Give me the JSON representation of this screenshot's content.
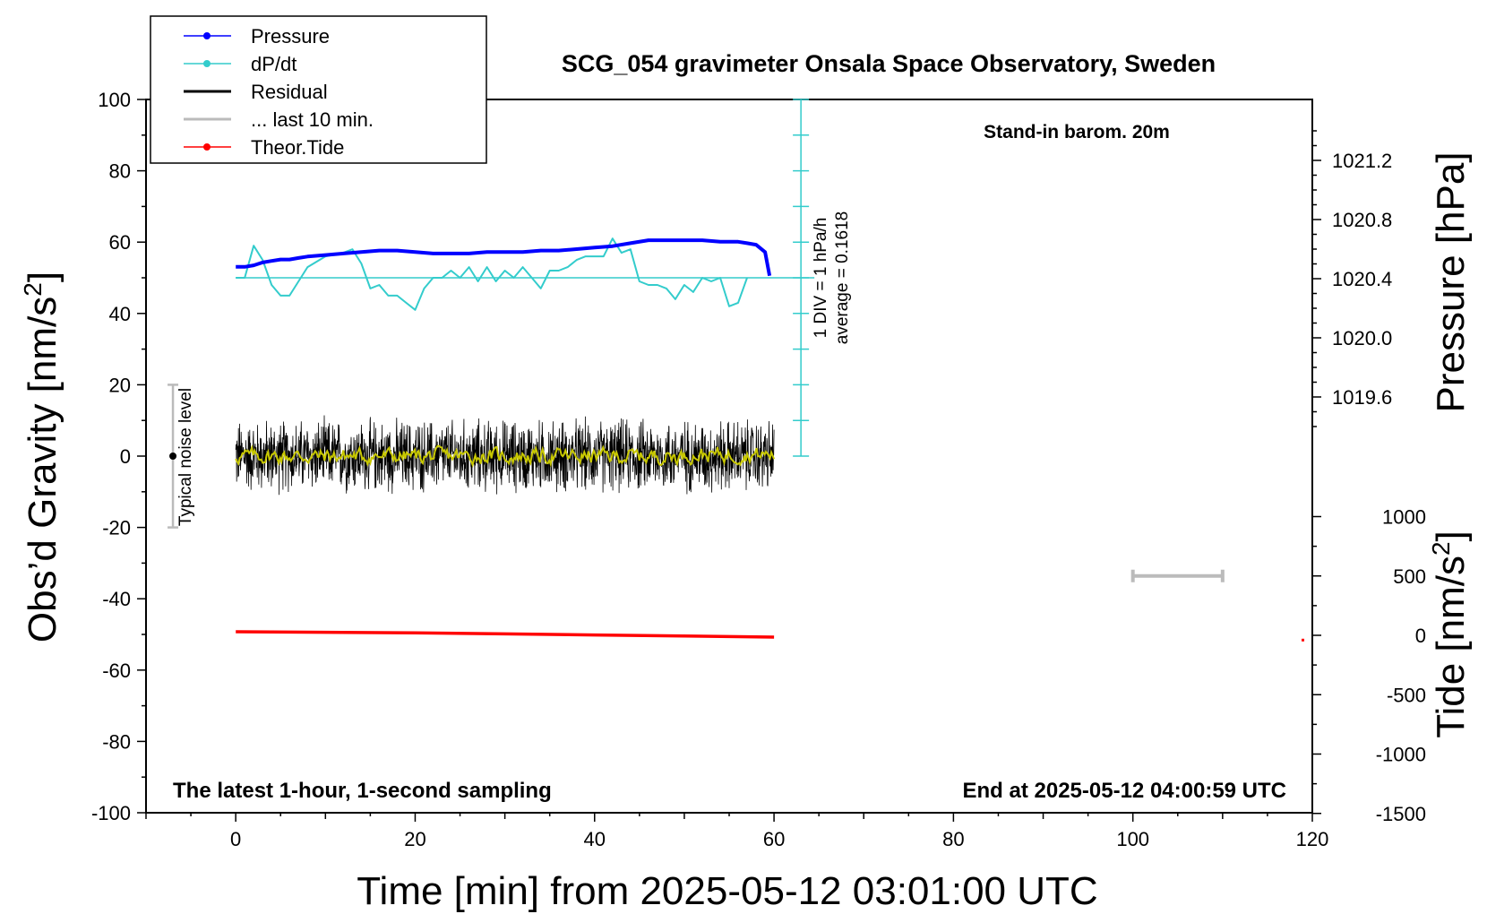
{
  "chart_data": {
    "type": "line",
    "title": "SCG_054 gravimeter Onsala Space Observatory, Sweden",
    "subtitle": "Stand-in barom. 20m",
    "xlabel": "Time [min] from 2025-05-12 03:01:00 UTC",
    "ylabel_left": "Obs’d Gravity [nm/s",
    "ylabel_left_sup": "2",
    "ylabel_left_end": "]",
    "ylabel_right_pressure": "Pressure [hPa]",
    "ylabel_right_tide": "Tide [nm/s",
    "ylabel_right_tide_sup": "2",
    "ylabel_right_tide_end": "]",
    "xlim": [
      -10,
      120
    ],
    "ylim": [
      -100,
      100
    ],
    "pressure_lim": [
      1019.35,
      1021.55
    ],
    "tide_lim": [
      -1500,
      1500
    ],
    "x_ticks": [
      0,
      20,
      40,
      60,
      80,
      100,
      120
    ],
    "y_ticks": [
      100,
      80,
      60,
      40,
      20,
      0,
      -20,
      -40,
      -60,
      -80,
      -100
    ],
    "pressure_ticks": [
      "1021.2",
      "1020.8",
      "1020.4",
      "1020.0",
      "1019.6"
    ],
    "tide_ticks": [
      "1000",
      "500",
      "0",
      "-500",
      "-1000",
      "-1500"
    ],
    "note_left": "The latest 1-hour, 1-second sampling",
    "note_right": "End at 2025-05-12 04:00:59 UTC",
    "dpdt_scale_line1": "1 DIV = 1 hPa/h",
    "dpdt_scale_line2": "average = 0.1618",
    "noise_label": "Typical noise level",
    "noise_range": [
      -20,
      20
    ],
    "legend": [
      {
        "label": "Pressure",
        "color": "#0000ff",
        "style": "line-dot"
      },
      {
        "label": "dP/dt",
        "color": "#33cccc",
        "style": "line-dot"
      },
      {
        "label": "Residual",
        "color": "#000000",
        "style": "line"
      },
      {
        "label": "... last 10 min.",
        "color": "#bbbbbb",
        "style": "line"
      },
      {
        "label": "Theor.Tide",
        "color": "#ff0000",
        "style": "line-dot"
      }
    ],
    "colors": {
      "pressure": "#0000ff",
      "dpdt": "#33cccc",
      "residual": "#000000",
      "residual_smooth": "#c8c800",
      "last10": "#bbbbbb",
      "tide": "#ff0000"
    },
    "series": [
      {
        "name": "Pressure",
        "unit": "hPa",
        "x": [
          0,
          1,
          2,
          3,
          4,
          5,
          6,
          7,
          8,
          10,
          12,
          14,
          16,
          18,
          20,
          22,
          24,
          26,
          28,
          30,
          32,
          34,
          36,
          38,
          40,
          42,
          44,
          46,
          48,
          50,
          52,
          54,
          56,
          57,
          58,
          59,
          59.5
        ],
        "values": [
          1020.48,
          1020.48,
          1020.49,
          1020.51,
          1020.52,
          1020.53,
          1020.53,
          1020.54,
          1020.55,
          1020.56,
          1020.57,
          1020.58,
          1020.59,
          1020.59,
          1020.58,
          1020.57,
          1020.57,
          1020.57,
          1020.58,
          1020.58,
          1020.58,
          1020.59,
          1020.59,
          1020.6,
          1020.61,
          1020.62,
          1020.64,
          1020.66,
          1020.66,
          1020.66,
          1020.66,
          1020.65,
          1020.65,
          1020.64,
          1020.63,
          1020.58,
          1020.42
        ]
      },
      {
        "name": "dP/dt",
        "unit": "hPa/h (1 DIV = 1 hPa/h, baseline = average 0.1618)",
        "x": [
          0,
          1,
          2,
          3,
          4,
          5,
          6,
          8,
          10,
          12,
          13,
          14,
          15,
          16,
          17,
          18,
          19,
          20,
          21,
          22,
          23,
          24,
          25,
          26,
          27,
          28,
          29,
          30,
          31,
          32,
          33,
          34,
          35,
          36,
          37,
          38,
          39,
          40,
          41,
          42,
          43,
          44,
          45,
          46,
          47,
          48,
          49,
          50,
          51,
          52,
          53,
          54,
          55,
          56,
          57
        ],
        "values": [
          0.0,
          0.0,
          0.9,
          0.5,
          -0.2,
          -0.5,
          -0.5,
          0.3,
          0.6,
          0.7,
          0.8,
          0.4,
          -0.3,
          -0.2,
          -0.5,
          -0.5,
          -0.7,
          -0.9,
          -0.3,
          0.0,
          0.0,
          0.2,
          0.0,
          0.3,
          -0.1,
          0.3,
          -0.1,
          0.2,
          0.0,
          0.3,
          0.0,
          -0.3,
          0.2,
          0.2,
          0.3,
          0.5,
          0.6,
          0.6,
          0.6,
          1.1,
          0.7,
          0.8,
          -0.1,
          -0.2,
          -0.2,
          -0.3,
          -0.6,
          -0.2,
          -0.4,
          0.0,
          -0.1,
          0.0,
          -0.8,
          -0.7,
          0.0
        ]
      },
      {
        "name": "Residual",
        "unit": "nm/s2",
        "x_range": [
          0,
          60
        ],
        "typical_envelope": [
          -12,
          12
        ],
        "peak_min": -16,
        "peak_max": 16
      },
      {
        "name": "Residual (smoothed)",
        "unit": "nm/s2",
        "x_range": [
          0,
          60
        ],
        "typical_range": [
          -2,
          3
        ]
      },
      {
        "name": "Theor.Tide",
        "unit": "nm/s2",
        "x": [
          0,
          10,
          20,
          30,
          40,
          50,
          60
        ],
        "values": [
          30,
          26,
          21,
          12,
          3,
          -6,
          -15
        ]
      }
    ],
    "last10_bar": {
      "x": [
        100,
        110
      ],
      "y_tide": 500
    }
  }
}
